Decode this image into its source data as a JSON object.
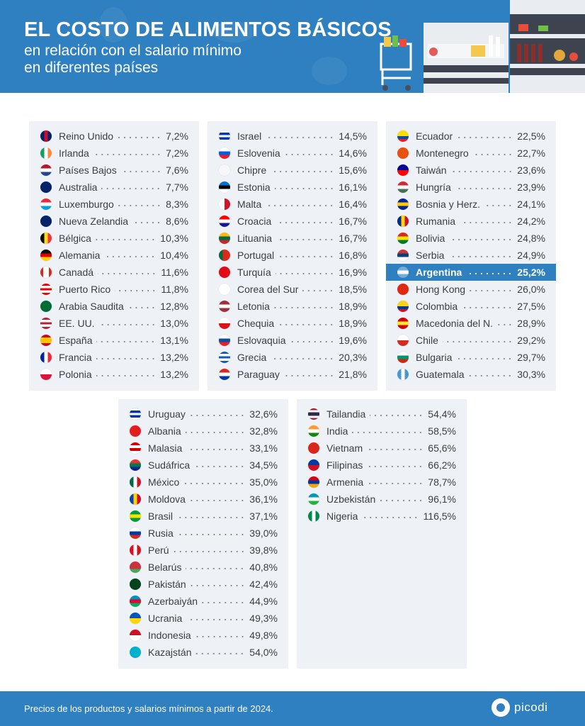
{
  "header": {
    "title": "EL COSTO DE ALIMENTOS BÁSICOS",
    "subtitle_line1": "en relación con el salario mínimo",
    "subtitle_line2": "en diferentes países"
  },
  "footer": {
    "note": "Precios de los productos y salarios mínimos a partir de 2024.",
    "brand": "picodi"
  },
  "colors": {
    "brand": "#2f80c0",
    "panel": "#eef1f5",
    "text": "#3a3f47"
  },
  "chart_data": {
    "type": "table",
    "title": "EL COSTO DE ALIMENTOS BÁSICOS en relación con el salario mínimo en diferentes países",
    "unit": "%",
    "highlight": "Argentina",
    "panels": [
      [
        {
          "name": "Reino Unido",
          "value": "7,2%",
          "dir": "v",
          "flag": [
            "#012169",
            "#c8102e",
            "#012169"
          ]
        },
        {
          "name": "Irlanda",
          "value": "7,2%",
          "dir": "v",
          "flag": [
            "#169b62",
            "#ffffff",
            "#ff883e"
          ]
        },
        {
          "name": "Países Bajos",
          "value": "7,6%",
          "dir": "h",
          "flag": [
            "#ae1c28",
            "#ffffff",
            "#21468b"
          ]
        },
        {
          "name": "Australia",
          "value": "7,7%",
          "dir": "h",
          "flag": [
            "#012169",
            "#012169"
          ]
        },
        {
          "name": "Luxemburgo",
          "value": "8,3%",
          "dir": "h",
          "flag": [
            "#ed2939",
            "#ffffff",
            "#00a1de"
          ]
        },
        {
          "name": "Nueva Zelandia",
          "value": "8,6%",
          "dir": "h",
          "flag": [
            "#012169",
            "#012169"
          ]
        },
        {
          "name": "Bélgica",
          "value": "10,3%",
          "dir": "v",
          "flag": [
            "#000000",
            "#fdda24",
            "#ef3340"
          ]
        },
        {
          "name": "Alemania",
          "value": "10,4%",
          "dir": "h",
          "flag": [
            "#000000",
            "#dd0000",
            "#ffce00"
          ]
        },
        {
          "name": "Canadá",
          "value": "11,6%",
          "dir": "v",
          "flag": [
            "#d52b1e",
            "#ffffff",
            "#ffffff",
            "#d52b1e"
          ]
        },
        {
          "name": "Puerto Rico",
          "value": "11,8%",
          "dir": "h",
          "flag": [
            "#ed0000",
            "#ffffff",
            "#ed0000",
            "#ffffff",
            "#ed0000"
          ]
        },
        {
          "name": "Arabia Saudita",
          "value": "12,8%",
          "dir": "h",
          "flag": [
            "#006c35",
            "#006c35"
          ]
        },
        {
          "name": "EE. UU.",
          "value": "13,0%",
          "dir": "h",
          "flag": [
            "#b22234",
            "#ffffff",
            "#b22234",
            "#ffffff",
            "#b22234"
          ]
        },
        {
          "name": "España",
          "value": "13,1%",
          "dir": "h",
          "flag": [
            "#c60b1e",
            "#ffc400",
            "#ffc400",
            "#c60b1e"
          ]
        },
        {
          "name": "Francia",
          "value": "13,2%",
          "dir": "v",
          "flag": [
            "#002395",
            "#ffffff",
            "#ed2939"
          ]
        },
        {
          "name": "Polonia",
          "value": "13,2%",
          "dir": "h",
          "flag": [
            "#ffffff",
            "#dc143c"
          ]
        }
      ],
      [
        {
          "name": "Israel",
          "value": "14,5%",
          "dir": "h",
          "flag": [
            "#ffffff",
            "#0038b8",
            "#ffffff",
            "#0038b8",
            "#ffffff"
          ]
        },
        {
          "name": "Eslovenia",
          "value": "14,6%",
          "dir": "h",
          "flag": [
            "#ffffff",
            "#005ce6",
            "#ed1c24"
          ]
        },
        {
          "name": "Chipre",
          "value": "15,6%",
          "dir": "h",
          "flag": [
            "#f7f7f7",
            "#f7f7f7"
          ]
        },
        {
          "name": "Estonia",
          "value": "16,1%",
          "dir": "h",
          "flag": [
            "#0072ce",
            "#000000",
            "#ffffff"
          ]
        },
        {
          "name": "Malta",
          "value": "16,4%",
          "dir": "v",
          "flag": [
            "#ffffff",
            "#cf142b"
          ]
        },
        {
          "name": "Croacia",
          "value": "16,7%",
          "dir": "h",
          "flag": [
            "#ff0000",
            "#ffffff",
            "#171796"
          ]
        },
        {
          "name": "Lituania",
          "value": "16,7%",
          "dir": "h",
          "flag": [
            "#fdb913",
            "#006a44",
            "#c1272d"
          ]
        },
        {
          "name": "Portugal",
          "value": "16,8%",
          "dir": "v",
          "flag": [
            "#046a38",
            "#da291c",
            "#da291c"
          ]
        },
        {
          "name": "Turquía",
          "value": "16,9%",
          "dir": "h",
          "flag": [
            "#e30a17",
            "#e30a17"
          ]
        },
        {
          "name": "Corea del Sur",
          "value": "18,5%",
          "dir": "h",
          "flag": [
            "#ffffff",
            "#ffffff"
          ]
        },
        {
          "name": "Letonia",
          "value": "18,9%",
          "dir": "h",
          "flag": [
            "#9e3039",
            "#ffffff",
            "#9e3039"
          ]
        },
        {
          "name": "Chequia",
          "value": "18,9%",
          "dir": "h",
          "flag": [
            "#ffffff",
            "#d7141a"
          ]
        },
        {
          "name": "Eslovaquia",
          "value": "19,6%",
          "dir": "h",
          "flag": [
            "#ffffff",
            "#0b4ea2",
            "#ee1c25"
          ]
        },
        {
          "name": "Grecia",
          "value": "20,3%",
          "dir": "h",
          "flag": [
            "#0d5eaf",
            "#ffffff",
            "#0d5eaf",
            "#ffffff",
            "#0d5eaf"
          ]
        },
        {
          "name": "Paraguay",
          "value": "21,8%",
          "dir": "h",
          "flag": [
            "#d52b1e",
            "#ffffff",
            "#0038a8"
          ]
        }
      ],
      [
        {
          "name": "Ecuador",
          "value": "22,5%",
          "dir": "h",
          "flag": [
            "#ffdd00",
            "#ffdd00",
            "#034ea2",
            "#ed1c24"
          ]
        },
        {
          "name": "Montenegro",
          "value": "22,7%",
          "dir": "h",
          "flag": [
            "#e8500f",
            "#e8500f"
          ]
        },
        {
          "name": "Taiwán",
          "value": "23,6%",
          "dir": "h",
          "flag": [
            "#000095",
            "#fe0000"
          ]
        },
        {
          "name": "Hungría",
          "value": "23,9%",
          "dir": "h",
          "flag": [
            "#ce2939",
            "#ffffff",
            "#477050"
          ]
        },
        {
          "name": "Bosnia y Herz.",
          "value": "24,1%",
          "dir": "h",
          "flag": [
            "#002395",
            "#fecb00",
            "#002395"
          ]
        },
        {
          "name": "Rumania",
          "value": "24,2%",
          "dir": "v",
          "flag": [
            "#002b7f",
            "#fcd116",
            "#ce1126"
          ]
        },
        {
          "name": "Bolivia",
          "value": "24,8%",
          "dir": "h",
          "flag": [
            "#d52b1e",
            "#f9e300",
            "#007934"
          ]
        },
        {
          "name": "Serbia",
          "value": "24,9%",
          "dir": "h",
          "flag": [
            "#c6363c",
            "#0c4076",
            "#ffffff"
          ]
        },
        {
          "name": "Argentina",
          "value": "25,2%",
          "dir": "h",
          "flag": [
            "#74acdf",
            "#ffffff",
            "#74acdf"
          ]
        },
        {
          "name": "Hong Kong",
          "value": "26,0%",
          "dir": "h",
          "flag": [
            "#de2910",
            "#de2910"
          ]
        },
        {
          "name": "Colombia",
          "value": "27,5%",
          "dir": "h",
          "flag": [
            "#fcd116",
            "#fcd116",
            "#003893",
            "#ce1126"
          ]
        },
        {
          "name": "Macedonia del N.",
          "value": "28,9%",
          "dir": "h",
          "flag": [
            "#d20000",
            "#f8e92e",
            "#d20000"
          ]
        },
        {
          "name": "Chile",
          "value": "29,2%",
          "dir": "h",
          "flag": [
            "#ffffff",
            "#d52b1e"
          ]
        },
        {
          "name": "Bulgaria",
          "value": "29,7%",
          "dir": "h",
          "flag": [
            "#ffffff",
            "#00966e",
            "#d62612"
          ]
        },
        {
          "name": "Guatemala",
          "value": "30,3%",
          "dir": "v",
          "flag": [
            "#4997d0",
            "#ffffff",
            "#4997d0"
          ]
        }
      ],
      [
        {
          "name": "Uruguay",
          "value": "32,6%",
          "dir": "h",
          "flag": [
            "#ffffff",
            "#0038a8",
            "#ffffff",
            "#0038a8",
            "#ffffff"
          ]
        },
        {
          "name": "Albania",
          "value": "32,8%",
          "dir": "h",
          "flag": [
            "#e41e20",
            "#e41e20"
          ]
        },
        {
          "name": "Malasia",
          "value": "33,1%",
          "dir": "h",
          "flag": [
            "#cc0001",
            "#ffffff",
            "#cc0001",
            "#ffffff"
          ]
        },
        {
          "name": "Sudáfrica",
          "value": "34,5%",
          "dir": "h",
          "flag": [
            "#de3831",
            "#007a4d",
            "#002395"
          ]
        },
        {
          "name": "México",
          "value": "35,0%",
          "dir": "v",
          "flag": [
            "#006847",
            "#ffffff",
            "#ce1126"
          ]
        },
        {
          "name": "Moldova",
          "value": "36,1%",
          "dir": "v",
          "flag": [
            "#0046ae",
            "#ffd200",
            "#cc092f"
          ]
        },
        {
          "name": "Brasil",
          "value": "37,1%",
          "dir": "h",
          "flag": [
            "#009c3b",
            "#ffdf00",
            "#009c3b"
          ]
        },
        {
          "name": "Rusia",
          "value": "39,0%",
          "dir": "h",
          "flag": [
            "#ffffff",
            "#0039a6",
            "#d52b1e"
          ]
        },
        {
          "name": "Perú",
          "value": "39,8%",
          "dir": "v",
          "flag": [
            "#d91023",
            "#ffffff",
            "#d91023"
          ]
        },
        {
          "name": "Belarús",
          "value": "40,8%",
          "dir": "h",
          "flag": [
            "#c8313e",
            "#c8313e",
            "#4aa657"
          ]
        },
        {
          "name": "Pakistán",
          "value": "42,4%",
          "dir": "h",
          "flag": [
            "#01411c",
            "#01411c"
          ]
        },
        {
          "name": "Azerbaiyán",
          "value": "44,9%",
          "dir": "h",
          "flag": [
            "#0092bc",
            "#e4002b",
            "#00af66"
          ]
        },
        {
          "name": "Ucrania",
          "value": "49,3%",
          "dir": "h",
          "flag": [
            "#0057b7",
            "#ffd700"
          ]
        },
        {
          "name": "Indonesia",
          "value": "49,8%",
          "dir": "h",
          "flag": [
            "#ce1126",
            "#ffffff"
          ]
        },
        {
          "name": "Kazajstán",
          "value": "54,0%",
          "dir": "h",
          "flag": [
            "#00afca",
            "#00afca"
          ]
        }
      ],
      [
        {
          "name": "Tailandia",
          "value": "54,4%",
          "dir": "h",
          "flag": [
            "#a51931",
            "#ffffff",
            "#2d2a4a",
            "#2d2a4a",
            "#ffffff",
            "#a51931"
          ]
        },
        {
          "name": "India",
          "value": "58,5%",
          "dir": "h",
          "flag": [
            "#ff9933",
            "#ffffff",
            "#138808"
          ]
        },
        {
          "name": "Vietnam",
          "value": "65,6%",
          "dir": "h",
          "flag": [
            "#da251d",
            "#da251d"
          ]
        },
        {
          "name": "Filipinas",
          "value": "66,2%",
          "dir": "h",
          "flag": [
            "#0038a8",
            "#ce1126"
          ]
        },
        {
          "name": "Armenia",
          "value": "78,7%",
          "dir": "h",
          "flag": [
            "#d90012",
            "#0033a0",
            "#f2a800"
          ]
        },
        {
          "name": "Uzbekistán",
          "value": "96,1%",
          "dir": "h",
          "flag": [
            "#0099b5",
            "#ffffff",
            "#1eb53a"
          ]
        },
        {
          "name": "Nigeria",
          "value": "116,5%",
          "dir": "v",
          "flag": [
            "#008751",
            "#ffffff",
            "#008751"
          ]
        }
      ]
    ]
  }
}
